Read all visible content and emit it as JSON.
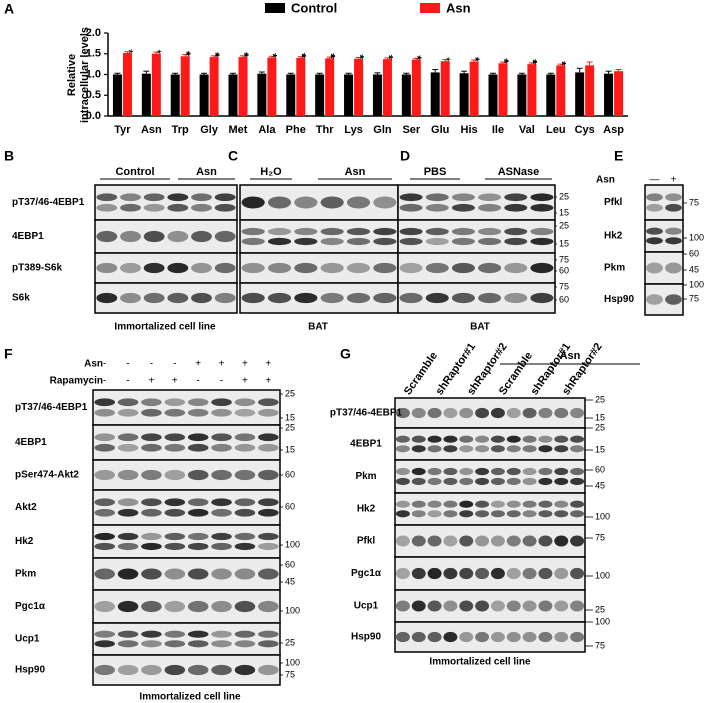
{
  "chart_data": {
    "type": "bar",
    "label": "A",
    "ylabel": [
      "Relative",
      "intracellular levels"
    ],
    "categories": [
      "Tyr",
      "Asn",
      "Trp",
      "Gly",
      "Met",
      "Ala",
      "Phe",
      "Thr",
      "Lys",
      "Gln",
      "Ser",
      "Glu",
      "His",
      "Ile",
      "Val",
      "Leu",
      "Cys",
      "Asp"
    ],
    "series": [
      {
        "name": "Control",
        "color": "#000000",
        "values": [
          1.0,
          1.02,
          1.0,
          1.0,
          1.0,
          1.02,
          1.0,
          1.0,
          1.0,
          1.0,
          1.0,
          1.05,
          1.03,
          1.0,
          1.0,
          1.0,
          1.05,
          1.02
        ],
        "errors": [
          0.03,
          0.06,
          0.03,
          0.03,
          0.03,
          0.04,
          0.03,
          0.03,
          0.03,
          0.04,
          0.03,
          0.07,
          0.05,
          0.03,
          0.03,
          0.03,
          0.1,
          0.06
        ]
      },
      {
        "name": "Asn",
        "color": "#ff1a1a",
        "values": [
          1.52,
          1.5,
          1.44,
          1.42,
          1.42,
          1.41,
          1.4,
          1.39,
          1.38,
          1.37,
          1.36,
          1.32,
          1.31,
          1.27,
          1.25,
          1.22,
          1.22,
          1.08
        ],
        "errors": [
          0.03,
          0.04,
          0.04,
          0.03,
          0.03,
          0.03,
          0.03,
          0.03,
          0.03,
          0.03,
          0.03,
          0.04,
          0.04,
          0.03,
          0.03,
          0.03,
          0.08,
          0.04
        ]
      }
    ],
    "significance": [
      "*",
      "*",
      "***",
      "***",
      "***",
      "**",
      "***",
      "***",
      "**",
      "**",
      "**",
      "*",
      "**",
      "***",
      "***",
      "**",
      null,
      null
    ],
    "ylim": [
      0,
      2.0
    ],
    "yticks": [
      {
        "value": 0,
        "label": "0.0"
      },
      {
        "value": 0.5,
        "label": "0.5"
      },
      {
        "value": 1.0,
        "label": "1.0"
      },
      {
        "value": 1.5,
        "label": "1.5"
      },
      {
        "value": 2.0,
        "label": "2.0"
      }
    ]
  },
  "blots": [
    {
      "label": "B",
      "groups": [
        "Control",
        "Asn"
      ],
      "rows": [
        "pT37/46-4EBP1",
        "4EBP1",
        "pT389-S6k",
        "S6k"
      ],
      "footer": "Immortalized cell line"
    },
    {
      "label": "C",
      "groups": [
        "H₂O",
        "Asn"
      ],
      "footer": "BAT"
    },
    {
      "label": "D",
      "groups": [
        "PBS",
        "ASNase"
      ],
      "markers": [
        25,
        15,
        25,
        15,
        75,
        60,
        75,
        60
      ],
      "footer": "BAT"
    },
    {
      "label": "E",
      "treatments": [
        {
          "name": "Asn",
          "signs": [
            "—",
            "+"
          ]
        }
      ],
      "rows": [
        "Pfkl",
        "Hk2",
        "Pkm",
        "Hsp90"
      ],
      "markers": [
        75,
        100,
        60,
        45,
        100,
        75
      ]
    },
    {
      "label": "F",
      "treatments": [
        {
          "name": "Asn",
          "signs": [
            "-",
            "-",
            "-",
            "-",
            "+",
            "+",
            "+",
            "+"
          ]
        },
        {
          "name": "Rapamycin",
          "signs": [
            "-",
            "-",
            "+",
            "+",
            "-",
            "-",
            "+",
            "+"
          ]
        }
      ],
      "rows": [
        "pT37/46-4EBP1",
        "4EBP1",
        "pSer474-Akt2",
        "Akt2",
        "Hk2",
        "Pkm",
        "Pgc1α",
        "Ucp1",
        "Hsp90"
      ],
      "markers": [
        25,
        15,
        25,
        15,
        60,
        60,
        100,
        60,
        45,
        100,
        25,
        100,
        75
      ],
      "footer": "Immortalized cell line"
    },
    {
      "label": "G",
      "groups": [
        "Asn"
      ],
      "lanes": [
        "Scramble",
        "shRaptor#1",
        "shRaptor#2",
        "Scramble",
        "shRaptor#1",
        "shRaptor#2"
      ],
      "rows": [
        "pT37/46-4EBP1",
        "4EBP1",
        "Pkm",
        "Hk2",
        "Pfkl",
        "Pgc1α",
        "Ucp1",
        "Hsp90"
      ],
      "markers": [
        25,
        15,
        25,
        15,
        60,
        45,
        100,
        75,
        100,
        25,
        100,
        75
      ],
      "footer": "Immortalized cell line"
    }
  ]
}
